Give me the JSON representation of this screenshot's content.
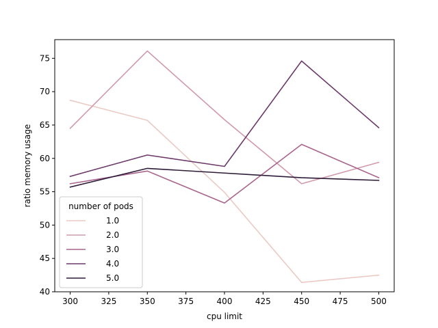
{
  "chart_data": {
    "type": "line",
    "title": "",
    "xlabel": "cpu limit",
    "ylabel": "ratio memory usage",
    "x": [
      300,
      350,
      400,
      450,
      500
    ],
    "xlim": [
      290,
      510
    ],
    "ylim": [
      40,
      77.8
    ],
    "xticks": [
      300,
      325,
      350,
      375,
      400,
      425,
      450,
      475,
      500
    ],
    "yticks": [
      40,
      45,
      50,
      55,
      60,
      65,
      70,
      75
    ],
    "grid": false,
    "legend": {
      "title": "number of pods",
      "placement": "lower-left"
    },
    "series": [
      {
        "name": "1.0",
        "color": "#ebcac5",
        "values": [
          68.7,
          65.7,
          54.9,
          41.4,
          42.5
        ]
      },
      {
        "name": "2.0",
        "color": "#d09aab",
        "values": [
          64.5,
          76.1,
          65.8,
          56.2,
          59.4
        ]
      },
      {
        "name": "3.0",
        "color": "#a8648d",
        "values": [
          56.2,
          58.1,
          53.3,
          62.1,
          57.1
        ]
      },
      {
        "name": "4.0",
        "color": "#6c3969",
        "values": [
          57.3,
          60.5,
          58.8,
          74.6,
          64.6
        ]
      },
      {
        "name": "5.0",
        "color": "#2c1a37",
        "values": [
          55.7,
          58.5,
          57.8,
          57.1,
          56.7
        ]
      }
    ]
  }
}
